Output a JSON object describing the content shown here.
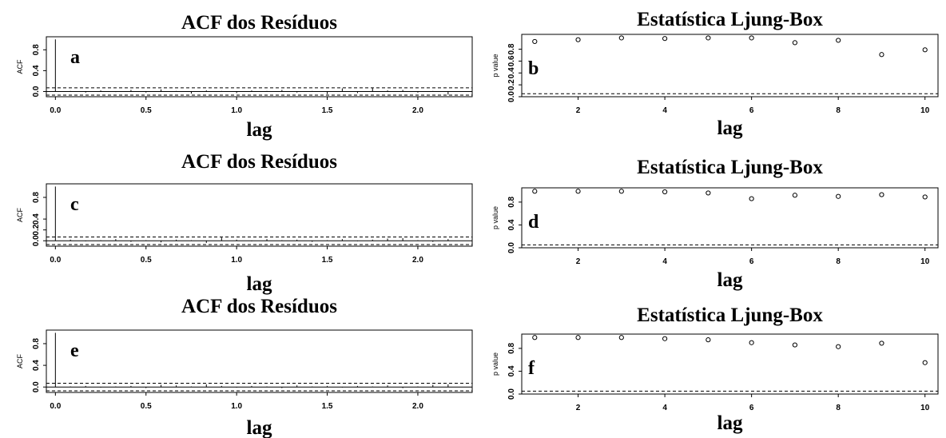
{
  "chart_data": [
    {
      "id": "acf-a",
      "type": "acf",
      "title": "ACF dos Resíduos",
      "xlabel": "lag",
      "ylabel": "ACF",
      "panel": "a",
      "xlim": [
        -0.05,
        2.3
      ],
      "ylim": [
        -0.1,
        1.05
      ],
      "xticks": [
        "0.0",
        "0.5",
        "1.0",
        "1.5",
        "2.0"
      ],
      "yticks": [
        "0.0",
        "0.4",
        "0.8"
      ],
      "ci": [
        0.07,
        -0.07
      ],
      "x": [
        0.0,
        0.083,
        0.167,
        0.25,
        0.333,
        0.417,
        0.5,
        0.583,
        0.667,
        0.75,
        0.833,
        0.917,
        1.0,
        1.083,
        1.167,
        1.25,
        1.333,
        1.417,
        1.5,
        1.583,
        1.667,
        1.75,
        1.833,
        1.917,
        2.0,
        2.083,
        2.167
      ],
      "values": [
        1.0,
        0.01,
        -0.02,
        0.02,
        -0.01,
        0.03,
        -0.02,
        0.04,
        0.01,
        -0.04,
        0.02,
        0.01,
        -0.03,
        0.02,
        0.01,
        0.03,
        -0.02,
        0.01,
        -0.05,
        0.06,
        -0.03,
        0.07,
        0.02,
        0.03,
        -0.02,
        0.01,
        -0.06
      ]
    },
    {
      "id": "lb-b",
      "type": "scatter",
      "title": "Estatística Ljung-Box",
      "xlabel": "lag",
      "ylabel": "p value",
      "panel": "b",
      "xlim": [
        0.7,
        10.3
      ],
      "ylim": [
        0,
        1.05
      ],
      "xticks": [
        "2",
        "4",
        "6",
        "8",
        "10"
      ],
      "yticks": [
        "0.0",
        "0.2",
        "0.4",
        "0.6",
        "0.8"
      ],
      "hline": 0.05,
      "x": [
        1,
        2,
        3,
        4,
        5,
        6,
        7,
        8,
        9,
        10
      ],
      "values": [
        0.93,
        0.96,
        0.99,
        0.98,
        0.99,
        0.99,
        0.91,
        0.95,
        0.71,
        0.79
      ]
    },
    {
      "id": "acf-c",
      "type": "acf",
      "title": "ACF dos Resíduos",
      "xlabel": "lag",
      "ylabel": "ACF",
      "panel": "c",
      "xlim": [
        -0.05,
        2.3
      ],
      "ylim": [
        -0.1,
        1.05
      ],
      "xticks": [
        "0.0",
        "0.5",
        "1.0",
        "1.5",
        "2.0"
      ],
      "yticks": [
        "0.0",
        "0.2",
        "0.4",
        "0.8"
      ],
      "ci": [
        0.07,
        -0.07
      ],
      "x": [
        0.0,
        0.083,
        0.167,
        0.25,
        0.333,
        0.417,
        0.5,
        0.583,
        0.667,
        0.75,
        0.833,
        0.917,
        1.0,
        1.083,
        1.167,
        1.25,
        1.333,
        1.417,
        1.5,
        1.583,
        1.667,
        1.75,
        1.833,
        1.917,
        2.0,
        2.083,
        2.167
      ],
      "values": [
        1.0,
        0.02,
        -0.01,
        0.01,
        0.03,
        -0.02,
        0.01,
        -0.03,
        0.02,
        0.01,
        -0.04,
        0.06,
        0.02,
        -0.01,
        0.03,
        0.01,
        0.02,
        -0.02,
        0.01,
        0.03,
        -0.01,
        0.02,
        0.04,
        0.05,
        0.01,
        -0.02,
        0.03
      ]
    },
    {
      "id": "lb-d",
      "type": "scatter",
      "title": "Estatística Ljung-Box",
      "xlabel": "lag",
      "ylabel": "p value",
      "panel": "d",
      "xlim": [
        0.7,
        10.3
      ],
      "ylim": [
        0,
        1.05
      ],
      "xticks": [
        "2",
        "4",
        "6",
        "8",
        "10"
      ],
      "yticks": [
        "0.0",
        "0.4",
        "0.8"
      ],
      "hline": 0.05,
      "x": [
        1,
        2,
        3,
        4,
        5,
        6,
        7,
        8,
        9,
        10
      ],
      "values": [
        0.99,
        0.99,
        0.99,
        0.98,
        0.96,
        0.86,
        0.92,
        0.9,
        0.93,
        0.89
      ]
    },
    {
      "id": "acf-e",
      "type": "acf",
      "title": "ACF dos Resíduos",
      "xlabel": "lag",
      "ylabel": "ACF",
      "panel": "e",
      "xlim": [
        -0.05,
        2.3
      ],
      "ylim": [
        -0.1,
        1.05
      ],
      "xticks": [
        "0.0",
        "0.5",
        "1.0",
        "1.5",
        "2.0"
      ],
      "yticks": [
        "0.0",
        "0.4",
        "0.8"
      ],
      "ci": [
        0.07,
        -0.07
      ],
      "x": [
        0.0,
        0.083,
        0.167,
        0.25,
        0.333,
        0.417,
        0.5,
        0.583,
        0.667,
        0.75,
        0.833,
        0.917,
        1.0,
        1.083,
        1.167,
        1.25,
        1.333,
        1.417,
        1.5,
        1.583,
        1.667,
        1.75,
        1.833,
        1.917,
        2.0,
        2.083,
        2.167
      ],
      "values": [
        1.0,
        0.01,
        0.02,
        -0.01,
        0.01,
        0.02,
        -0.02,
        0.04,
        0.03,
        0.01,
        0.05,
        0.02,
        -0.01,
        0.02,
        0.01,
        -0.02,
        0.03,
        0.01,
        0.02,
        -0.01,
        0.02,
        0.01,
        0.03,
        -0.02,
        0.01,
        0.04,
        0.05
      ]
    },
    {
      "id": "lb-f",
      "type": "scatter",
      "title": "Estatística Ljung-Box",
      "xlabel": "lag",
      "ylabel": "p value",
      "panel": "f",
      "xlim": [
        0.7,
        10.3
      ],
      "ylim": [
        0,
        1.05
      ],
      "xticks": [
        "2",
        "4",
        "6",
        "8",
        "10"
      ],
      "yticks": [
        "0.0",
        "0.4",
        "0.8"
      ],
      "hline": 0.05,
      "x": [
        1,
        2,
        3,
        4,
        5,
        6,
        7,
        8,
        9,
        10
      ],
      "values": [
        0.99,
        0.99,
        0.99,
        0.97,
        0.95,
        0.9,
        0.86,
        0.83,
        0.89,
        0.55
      ]
    }
  ]
}
